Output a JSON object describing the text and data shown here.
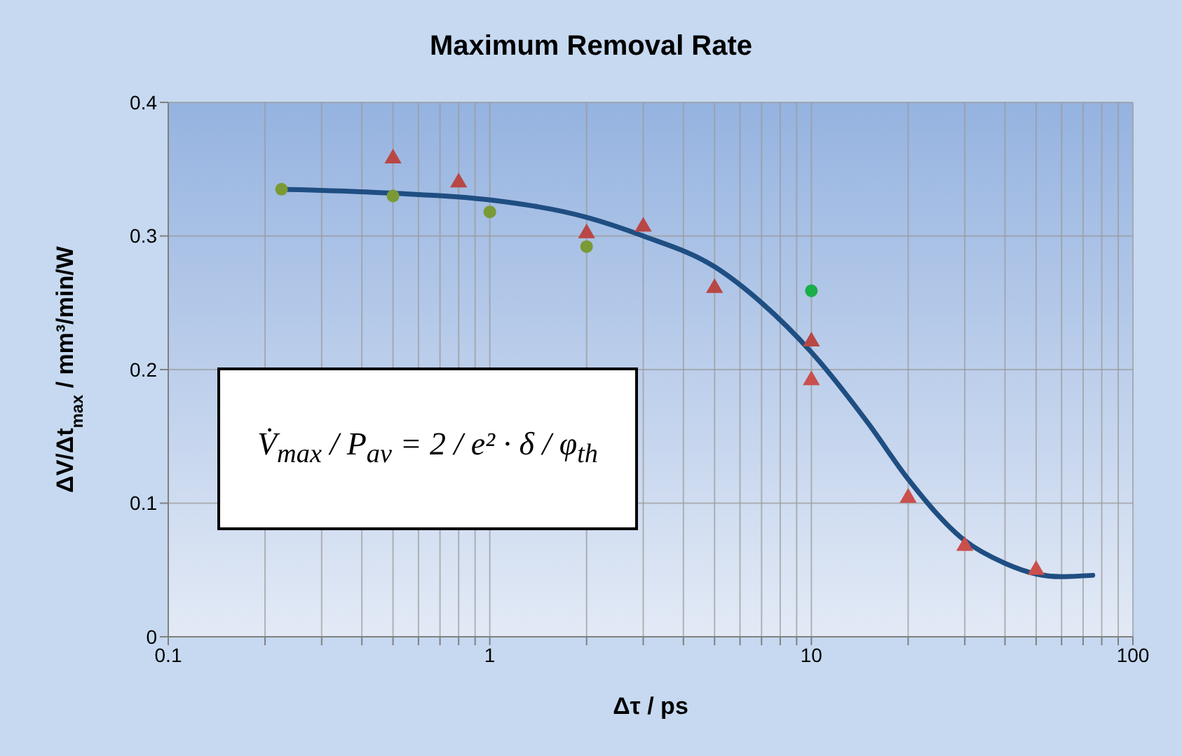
{
  "chart_data": {
    "type": "scatter",
    "title": "Maximum Removal Rate",
    "xlabel": "Δτ / ps",
    "ylabel": "ΔV/Δt$_{max}$ / mm³/min/W",
    "log": "x",
    "grid": true,
    "legend": false,
    "xlim": [
      0.1,
      100
    ],
    "xticks": [
      0.1,
      {
        "value": 0.2,
        "label": null
      },
      {
        "value": 0.3,
        "label": null
      },
      {
        "value": 0.4,
        "label": null
      },
      {
        "value": 0.5,
        "label": null
      },
      {
        "value": 0.6,
        "label": null
      },
      {
        "value": 0.7,
        "label": null
      },
      {
        "value": 0.8,
        "label": null
      },
      {
        "value": 0.9,
        "label": null
      },
      1,
      {
        "value": 2,
        "label": null
      },
      {
        "value": 3,
        "label": null
      },
      {
        "value": 4,
        "label": null
      },
      {
        "value": 5,
        "label": null
      },
      {
        "value": 6,
        "label": null
      },
      {
        "value": 7,
        "label": null
      },
      {
        "value": 8,
        "label": null
      },
      {
        "value": 9,
        "label": null
      },
      10,
      {
        "value": 20,
        "label": null
      },
      {
        "value": 30,
        "label": null
      },
      {
        "value": 40,
        "label": null
      },
      {
        "value": 50,
        "label": null
      },
      {
        "value": 60,
        "label": null
      },
      {
        "value": 70,
        "label": null
      },
      {
        "value": 80,
        "label": null
      },
      {
        "value": 90,
        "label": null
      },
      100
    ],
    "ylim": [
      0,
      0.4
    ],
    "yticks": [
      0,
      0.1,
      0.2,
      0.3,
      0.4
    ],
    "series": [
      {
        "type": "line",
        "marker": "none",
        "color": "#1f4e82",
        "x": [
          0.22,
          0.5,
          1,
          2,
          3,
          5,
          7,
          10,
          15,
          20,
          30,
          40,
          50,
          60,
          75
        ],
        "values": [
          0.335,
          0.332,
          0.327,
          0.314,
          0.3,
          0.277,
          0.25,
          0.213,
          0.16,
          0.118,
          0.072,
          0.055,
          0.047,
          0.045,
          0.046
        ]
      },
      {
        "marker": "circle",
        "color": "#7a9a35",
        "x": [
          0.225,
          0.5,
          1,
          2
        ],
        "values": [
          0.335,
          0.33,
          0.318,
          0.292
        ]
      },
      {
        "marker": "triangle",
        "color": "#b84745",
        "x": [
          0.5,
          0.8,
          2,
          3,
          5,
          10
        ],
        "values": [
          0.358,
          0.34,
          0.302,
          0.307,
          0.261,
          0.221
        ]
      },
      {
        "marker": "triangle",
        "color": "#c9504d",
        "x": [
          10,
          20,
          30,
          50
        ],
        "values": [
          0.192,
          0.104,
          0.068,
          0.05
        ]
      },
      {
        "marker": "circle",
        "color": "#1aae4a",
        "x": [
          10
        ],
        "values": [
          0.259
        ]
      }
    ],
    "annotations": [
      "V̇$_{max}$ / P$_{av}$ = 2 / e² · δ / φ$_{th}$"
    ]
  }
}
